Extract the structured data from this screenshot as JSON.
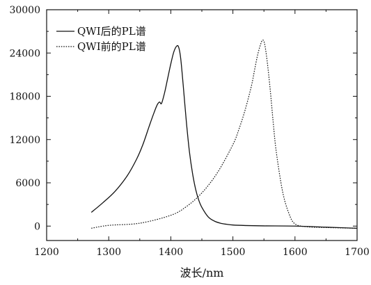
{
  "chart_data": {
    "type": "line",
    "title": "",
    "xlabel": "波长/nm",
    "ylabel": "",
    "xlim": [
      1200,
      1700
    ],
    "ylim": [
      -2000,
      30000
    ],
    "xticks": [
      "1200",
      "1300",
      "1400",
      "1500",
      "1600",
      "1700"
    ],
    "yticks": [
      "0",
      "6000",
      "12000",
      "18000",
      "24000",
      "30000"
    ],
    "grid": false,
    "legend_position": "top-left",
    "series": [
      {
        "name": "QWI后的PL谱",
        "style": "solid",
        "color": "#111111",
        "x": [
          1272,
          1290,
          1310,
          1330,
          1345,
          1355,
          1365,
          1372,
          1378,
          1382,
          1385,
          1390,
          1395,
          1400,
          1405,
          1410,
          1413,
          1416,
          1420,
          1425,
          1430,
          1435,
          1440,
          1445,
          1450,
          1460,
          1470,
          1480,
          1490,
          1500,
          1520,
          1550,
          1600,
          1650,
          1700
        ],
        "y": [
          1900,
          3200,
          4800,
          7000,
          9300,
          11300,
          13800,
          15500,
          16800,
          17200,
          17000,
          18500,
          20500,
          22500,
          24200,
          25000,
          24700,
          23200,
          19500,
          14500,
          10300,
          7300,
          5100,
          3600,
          2600,
          1300,
          700,
          400,
          250,
          150,
          80,
          30,
          0,
          -150,
          -300
        ]
      },
      {
        "name": "QWI前的PL谱",
        "style": "dotted",
        "color": "#111111",
        "x": [
          1272,
          1300,
          1350,
          1400,
          1425,
          1450,
          1475,
          1500,
          1510,
          1520,
          1530,
          1535,
          1540,
          1545,
          1548,
          1551,
          1555,
          1560,
          1565,
          1570,
          1580,
          1590,
          1600,
          1620,
          1650,
          1700
        ],
        "y": [
          -300,
          100,
          400,
          1500,
          2700,
          4600,
          7400,
          11300,
          13500,
          16200,
          19500,
          21700,
          23800,
          25300,
          25800,
          25300,
          23000,
          19000,
          14300,
          10200,
          4800,
          1800,
          300,
          -100,
          -200,
          -300
        ]
      }
    ]
  }
}
